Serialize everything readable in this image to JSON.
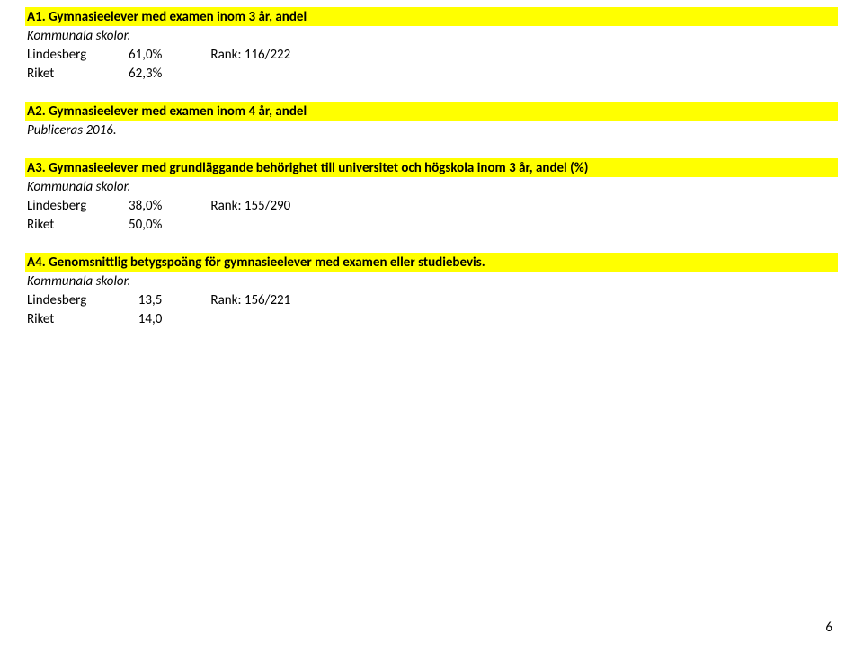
{
  "colors": {
    "highlight": "#ffff00",
    "background": "#ffffff",
    "text": "#000000"
  },
  "sections": {
    "a1": {
      "title": "A1. Gymnasieelever med examen inom 3 år, andel (%).",
      "subtitle": "Kommunala skolor.",
      "rows": {
        "lindesberg_label": "Lindesberg",
        "lindesberg_value": "61,0%",
        "lindesberg_rank": "Rank: 116/222",
        "riket_label": "Riket",
        "riket_value": "62,3%"
      }
    },
    "a2": {
      "title": "A2. Gymnasieelever med examen inom 4 år, andel (%).",
      "subtitle": "Publiceras 2016."
    },
    "a3": {
      "title": "A3. Gymnasieelever med grundläggande behörighet till universitet och högskola inom 3 år, andel (%).",
      "subtitle": "Kommunala skolor.",
      "rows": {
        "lindesberg_label": "Lindesberg",
        "lindesberg_value": "38,0%",
        "lindesberg_rank": "Rank: 155/290",
        "riket_label": "Riket",
        "riket_value": "50,0%"
      }
    },
    "a4": {
      "title": "A4. Genomsnittlig betygspoäng för gymnasieelever med examen eller studiebevis.",
      "subtitle": "Kommunala skolor.",
      "rows": {
        "lindesberg_label": "Lindesberg",
        "lindesberg_value": "13,5",
        "lindesberg_rank": "Rank: 156/221",
        "riket_label": "Riket",
        "riket_value": "14,0"
      }
    }
  },
  "page_number": "6"
}
